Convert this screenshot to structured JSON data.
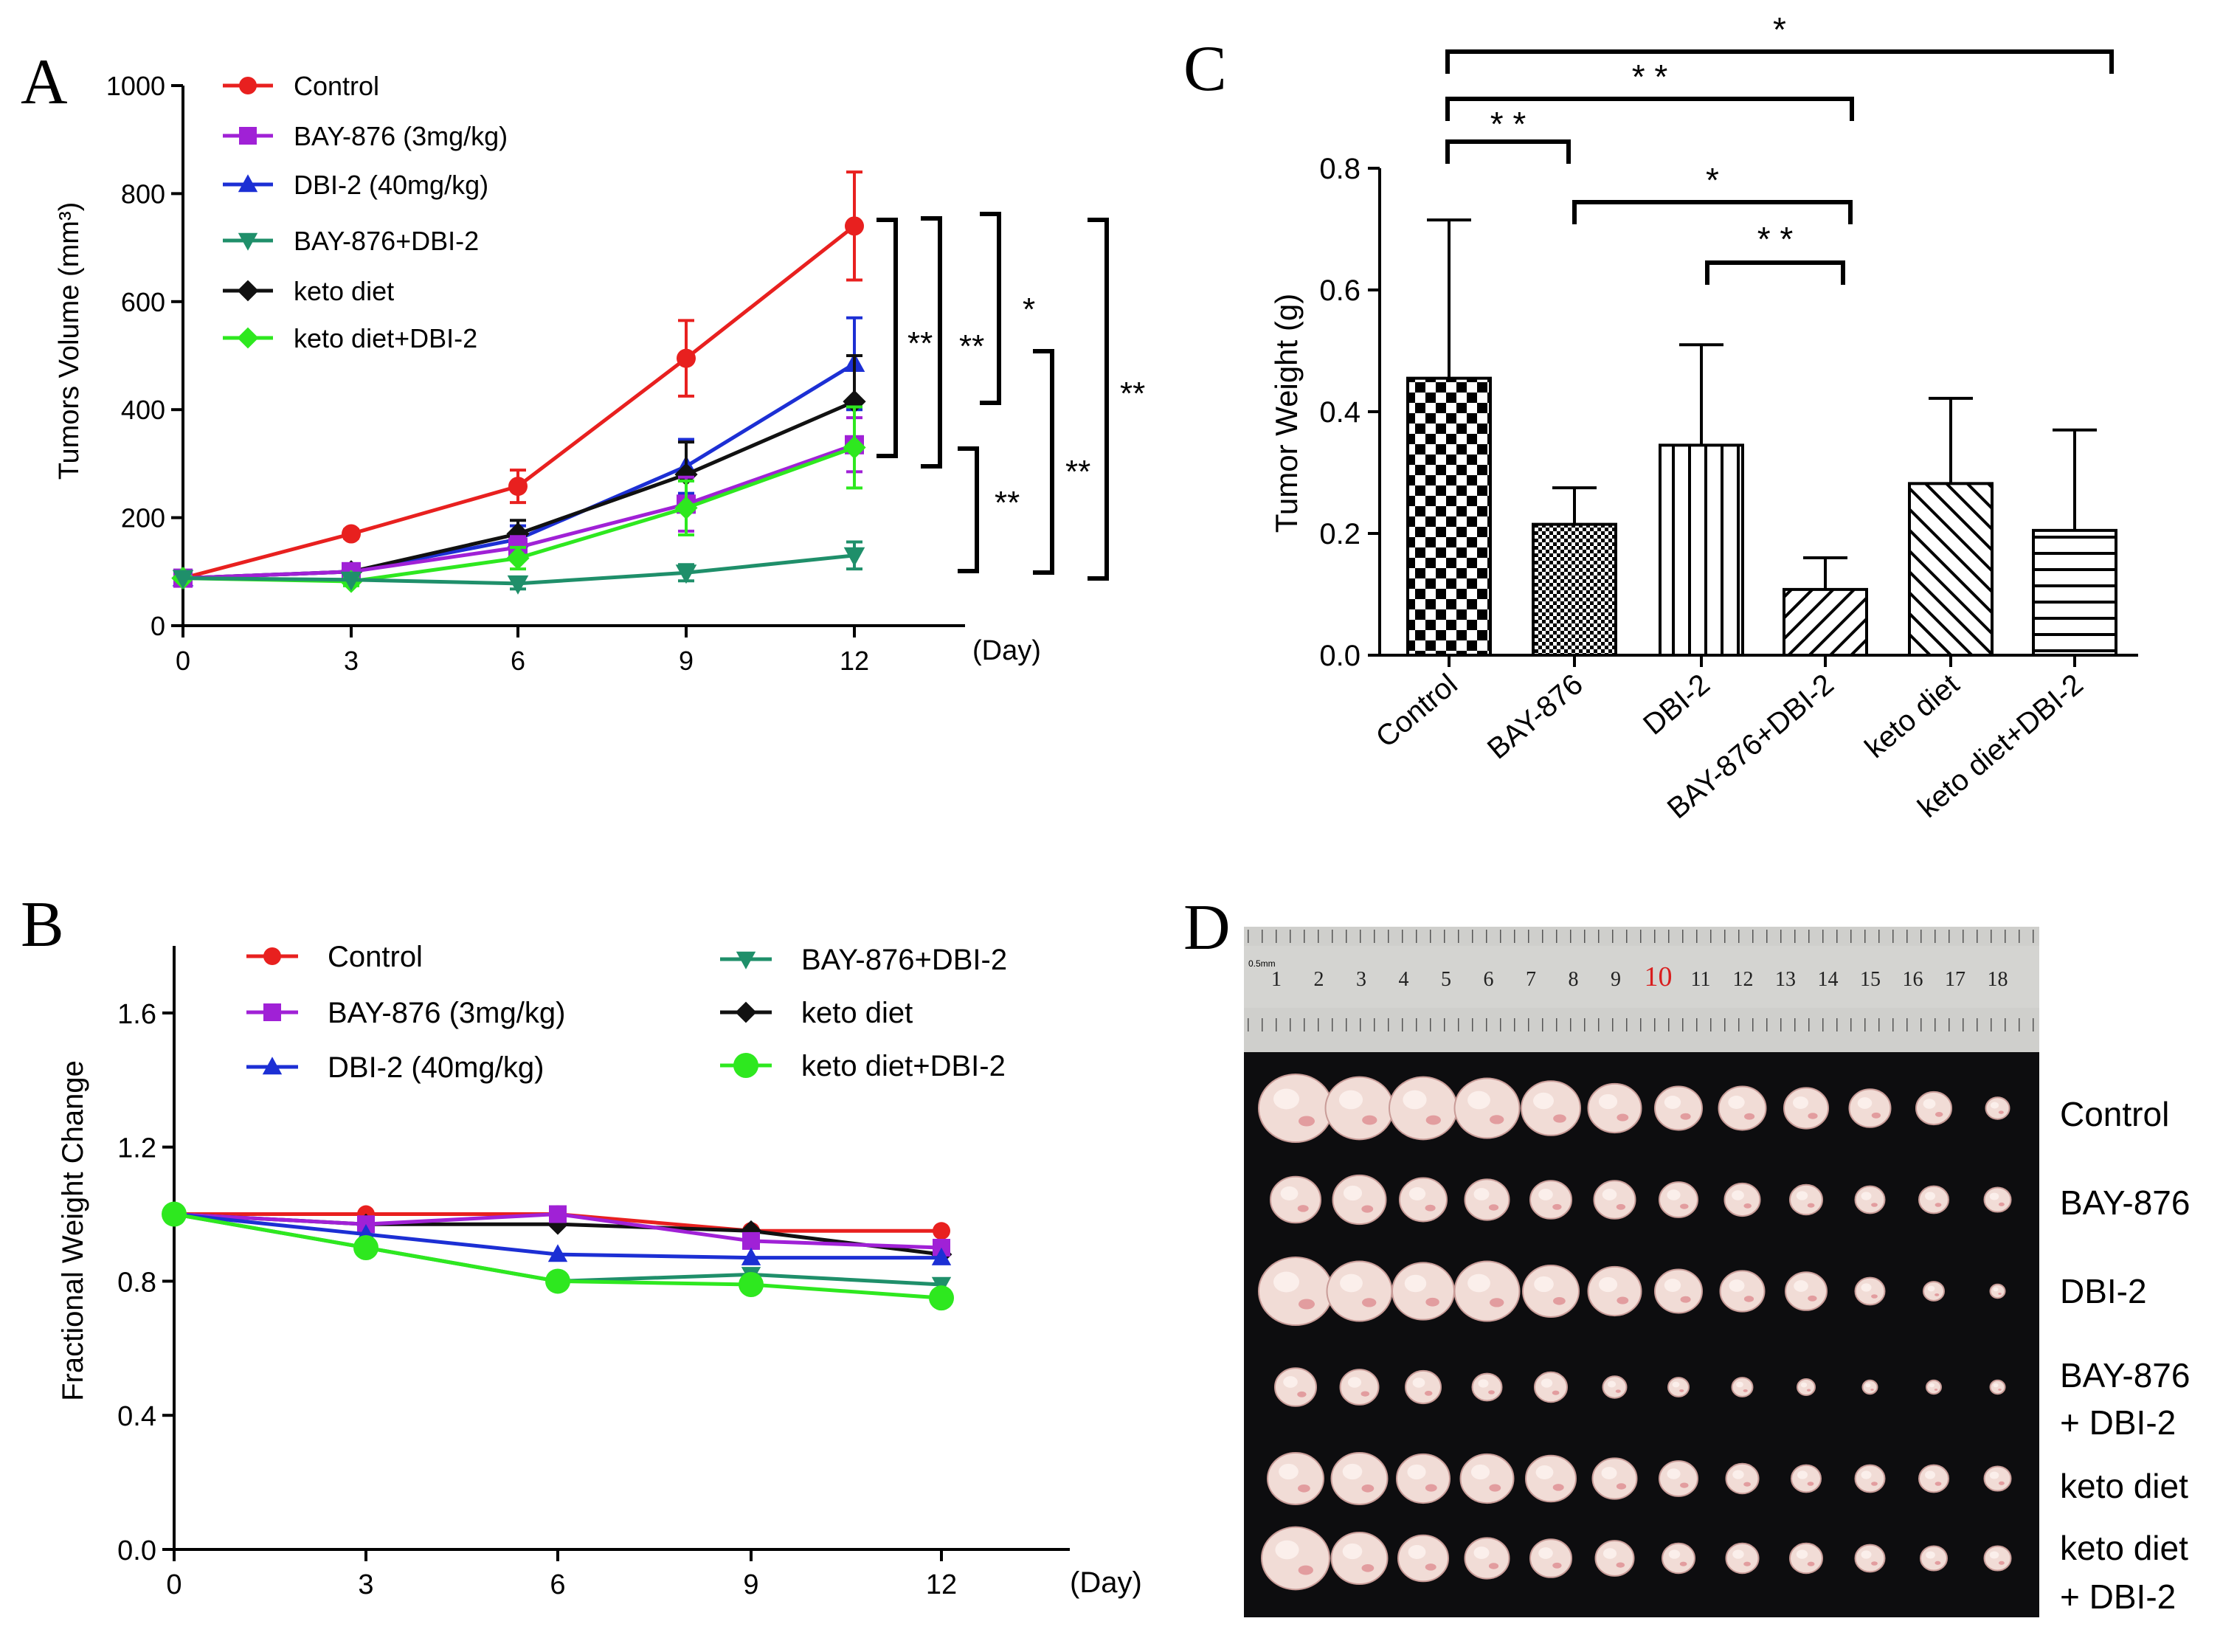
{
  "panels": {
    "A": "A",
    "B": "B",
    "C": "C",
    "D": "D"
  },
  "colors": {
    "control": "#e8201f",
    "bay876": "#a021d6",
    "dbi2": "#1c2fd4",
    "combo": "#1f8f6a",
    "keto": "#111111",
    "ketoDbi2": "#2ee81f"
  },
  "chart_data": [
    {
      "id": "A",
      "type": "line",
      "ylabel": "Tumors Volume (mm³)",
      "xlabel": "(Day)",
      "x": [
        0,
        3,
        6,
        9,
        12
      ],
      "ylim": [
        0,
        1000
      ],
      "yticks": [
        0,
        200,
        400,
        600,
        800,
        1000
      ],
      "series": [
        {
          "key": "control",
          "name": "Control",
          "marker": "circle",
          "values": [
            88,
            170,
            258,
            495,
            740
          ],
          "err": [
            5,
            8,
            30,
            70,
            100
          ]
        },
        {
          "key": "bay876",
          "name": "BAY-876 (3mg/kg)",
          "marker": "square",
          "values": [
            88,
            100,
            145,
            225,
            335
          ],
          "err": [
            5,
            8,
            20,
            50,
            50
          ]
        },
        {
          "key": "dbi2",
          "name": "DBI-2 (40mg/kg)",
          "marker": "triangle-up",
          "values": [
            88,
            100,
            160,
            295,
            485
          ],
          "err": [
            5,
            8,
            25,
            50,
            85
          ]
        },
        {
          "key": "combo",
          "name": "BAY-876+DBI-2",
          "marker": "triangle-down",
          "values": [
            88,
            85,
            78,
            98,
            130
          ],
          "err": [
            5,
            5,
            10,
            15,
            25
          ]
        },
        {
          "key": "keto",
          "name": "keto diet",
          "marker": "diamond",
          "values": [
            88,
            100,
            170,
            280,
            415
          ],
          "err": [
            5,
            8,
            25,
            60,
            85
          ]
        },
        {
          "key": "ketoDbi2",
          "name": "keto diet+DBI-2",
          "marker": "diamond",
          "values": [
            88,
            82,
            125,
            218,
            330
          ],
          "err": [
            5,
            8,
            20,
            50,
            75
          ]
        }
      ],
      "significance": [
        "**",
        "**",
        "*",
        "**",
        "**",
        "**"
      ]
    },
    {
      "id": "B",
      "type": "line",
      "ylabel": "Fractional Weight Change",
      "xlabel": "(Day)",
      "x": [
        0,
        3,
        6,
        9,
        12
      ],
      "ylim": [
        0,
        1.8
      ],
      "yticks": [
        "0.0",
        "0.4",
        "0.8",
        "1.2",
        "1.6"
      ],
      "series": [
        {
          "key": "control",
          "name": "Control",
          "marker": "circle",
          "values": [
            1.0,
            1.0,
            1.0,
            0.95,
            0.95
          ]
        },
        {
          "key": "bay876",
          "name": "BAY-876 (3mg/kg)",
          "marker": "square",
          "values": [
            1.0,
            0.97,
            1.0,
            0.92,
            0.9
          ]
        },
        {
          "key": "dbi2",
          "name": "DBI-2 (40mg/kg)",
          "marker": "triangle-up",
          "values": [
            1.0,
            0.94,
            0.88,
            0.87,
            0.87
          ]
        },
        {
          "key": "combo",
          "name": "BAY-876+DBI-2",
          "marker": "triangle-down",
          "values": [
            1.0,
            0.9,
            0.8,
            0.82,
            0.79
          ]
        },
        {
          "key": "keto",
          "name": "keto diet",
          "marker": "diamond",
          "values": [
            1.0,
            0.97,
            0.97,
            0.95,
            0.88
          ]
        },
        {
          "key": "ketoDbi2",
          "name": "keto diet+DBI-2",
          "marker": "circle",
          "values": [
            1.0,
            0.9,
            0.8,
            0.79,
            0.75
          ]
        }
      ]
    },
    {
      "id": "C",
      "type": "bar",
      "ylabel": "Tumor Weight (g)",
      "categories": [
        "Control",
        "BAY-876",
        "DBI-2",
        "BAY-876+DBI-2",
        "keto diet",
        "keto diet+DBI-2"
      ],
      "values": [
        0.455,
        0.215,
        0.345,
        0.108,
        0.282,
        0.205
      ],
      "err": [
        0.26,
        0.06,
        0.165,
        0.052,
        0.14,
        0.165
      ],
      "ylim": [
        0,
        0.8
      ],
      "yticks": [
        "0.0",
        "0.2",
        "0.4",
        "0.6",
        "0.8"
      ],
      "significance": [
        "*",
        "* *",
        "* *",
        "*",
        "* *"
      ]
    }
  ],
  "photo": {
    "ruler_numbers": [
      "1",
      "2",
      "3",
      "4",
      "5",
      "6",
      "7",
      "8",
      "9",
      "10",
      "11",
      "12",
      "13",
      "14",
      "15",
      "16",
      "17",
      "18"
    ],
    "ruler_unit": "0.5mm",
    "row_labels": [
      [
        "Control"
      ],
      [
        "BAY-876"
      ],
      [
        "DBI-2"
      ],
      [
        "BAY-876",
        "+ DBI-2"
      ],
      [
        "keto diet"
      ],
      [
        "keto diet",
        "+ DBI-2"
      ]
    ]
  }
}
